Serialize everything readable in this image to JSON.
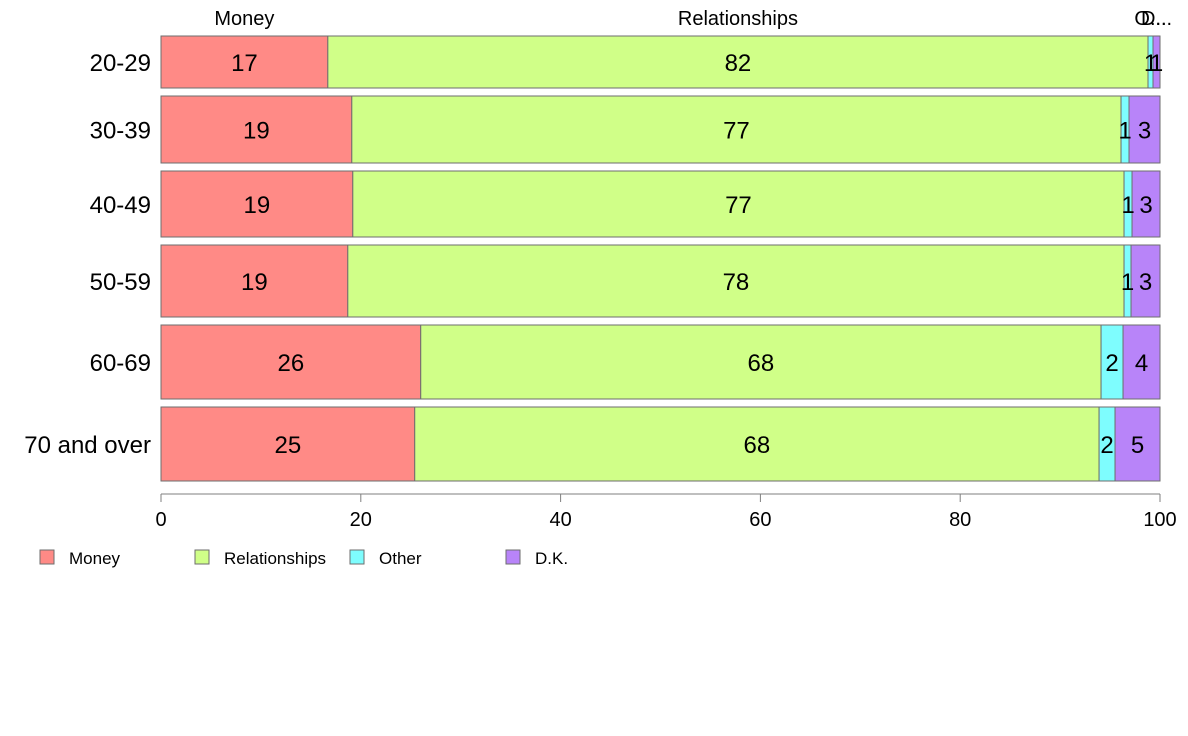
{
  "chart_data": {
    "type": "bar",
    "orientation": "horizontal",
    "stacked": true,
    "categories": [
      "20-29",
      "30-39",
      "40-49",
      "50-59",
      "60-69",
      "70 and over"
    ],
    "series": [
      {
        "name": "Money",
        "color": "#ff8a86",
        "values": [
          16.7,
          19.1,
          19.2,
          18.7,
          26.0,
          25.4
        ],
        "labels": [
          "17",
          "19",
          "19",
          "19",
          "26",
          "25"
        ]
      },
      {
        "name": "Relationships",
        "color": "#d0ff88",
        "values": [
          82.1,
          77.0,
          77.2,
          77.7,
          68.1,
          68.5
        ],
        "labels": [
          "82",
          "77",
          "77",
          "78",
          "68",
          "68"
        ]
      },
      {
        "name": "Other",
        "color": "#7efdfe",
        "values": [
          0.5,
          0.8,
          0.8,
          0.7,
          2.2,
          1.6
        ],
        "labels": [
          "1",
          "1",
          "1",
          "1",
          "2",
          "2"
        ]
      },
      {
        "name": "D.K.",
        "color": "#b884f9",
        "values": [
          0.7,
          3.1,
          2.8,
          2.9,
          3.7,
          4.5
        ],
        "labels": [
          "1",
          "3",
          "3",
          "3",
          "4",
          "5"
        ]
      }
    ],
    "top_labels": [
      "Money",
      "Relationships",
      "O...",
      "D..."
    ],
    "xlim": [
      0,
      100
    ],
    "xticks": [
      "0",
      "20",
      "40",
      "60",
      "80",
      "100"
    ],
    "legend_position": "bottom-left",
    "grid": false
  }
}
